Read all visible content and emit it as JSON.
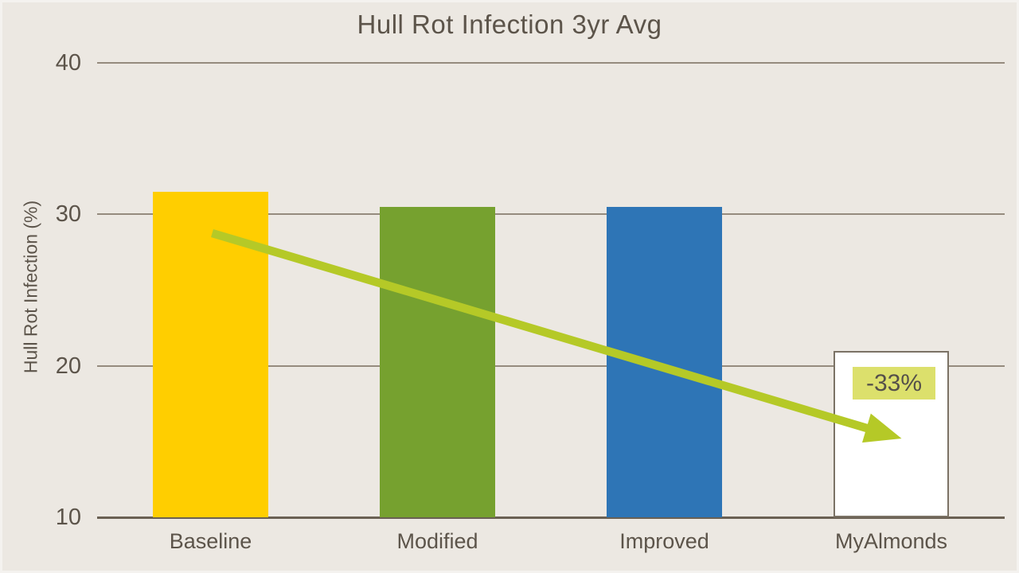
{
  "title": "Hull Rot Infection 3yr Avg",
  "y_axis": {
    "title": "Hull Rot Infection (%)"
  },
  "annotation": {
    "text": "-33%"
  },
  "colors": {
    "background": "#ECE8E2",
    "text": "#5C544A",
    "gridline": "#958B7E",
    "axis_line": "#6A6053",
    "arrow": "#B5C927",
    "annotation_background": "#DCE06C",
    "bar_outline": "#7B7265"
  },
  "chart_data": {
    "type": "bar",
    "title": "Hull Rot Infection 3yr Avg",
    "categories": [
      "Baseline",
      "Modified",
      "Improved",
      "MyAlmonds"
    ],
    "values": [
      31.5,
      30.5,
      30.5,
      21
    ],
    "bar_colors": [
      "#FFCE00",
      "#76A12F",
      "#2E75B6",
      "#FFFFFF"
    ],
    "bar_border_colors": [
      null,
      null,
      null,
      "#7B7265"
    ],
    "xlabel": "",
    "ylabel": "Hull Rot Infection (%)",
    "ylim": [
      10,
      40
    ],
    "yticks": [
      10,
      20,
      30,
      40
    ],
    "grid": true,
    "legend": false,
    "annotations": [
      {
        "type": "label",
        "text": "-33%",
        "target_category": "MyAlmonds",
        "background": "#DCE06C"
      },
      {
        "type": "arrow",
        "from_category": "Baseline",
        "to_category": "MyAlmonds",
        "color": "#B5C927",
        "meaning": "downward trend from Baseline to MyAlmonds"
      }
    ]
  }
}
